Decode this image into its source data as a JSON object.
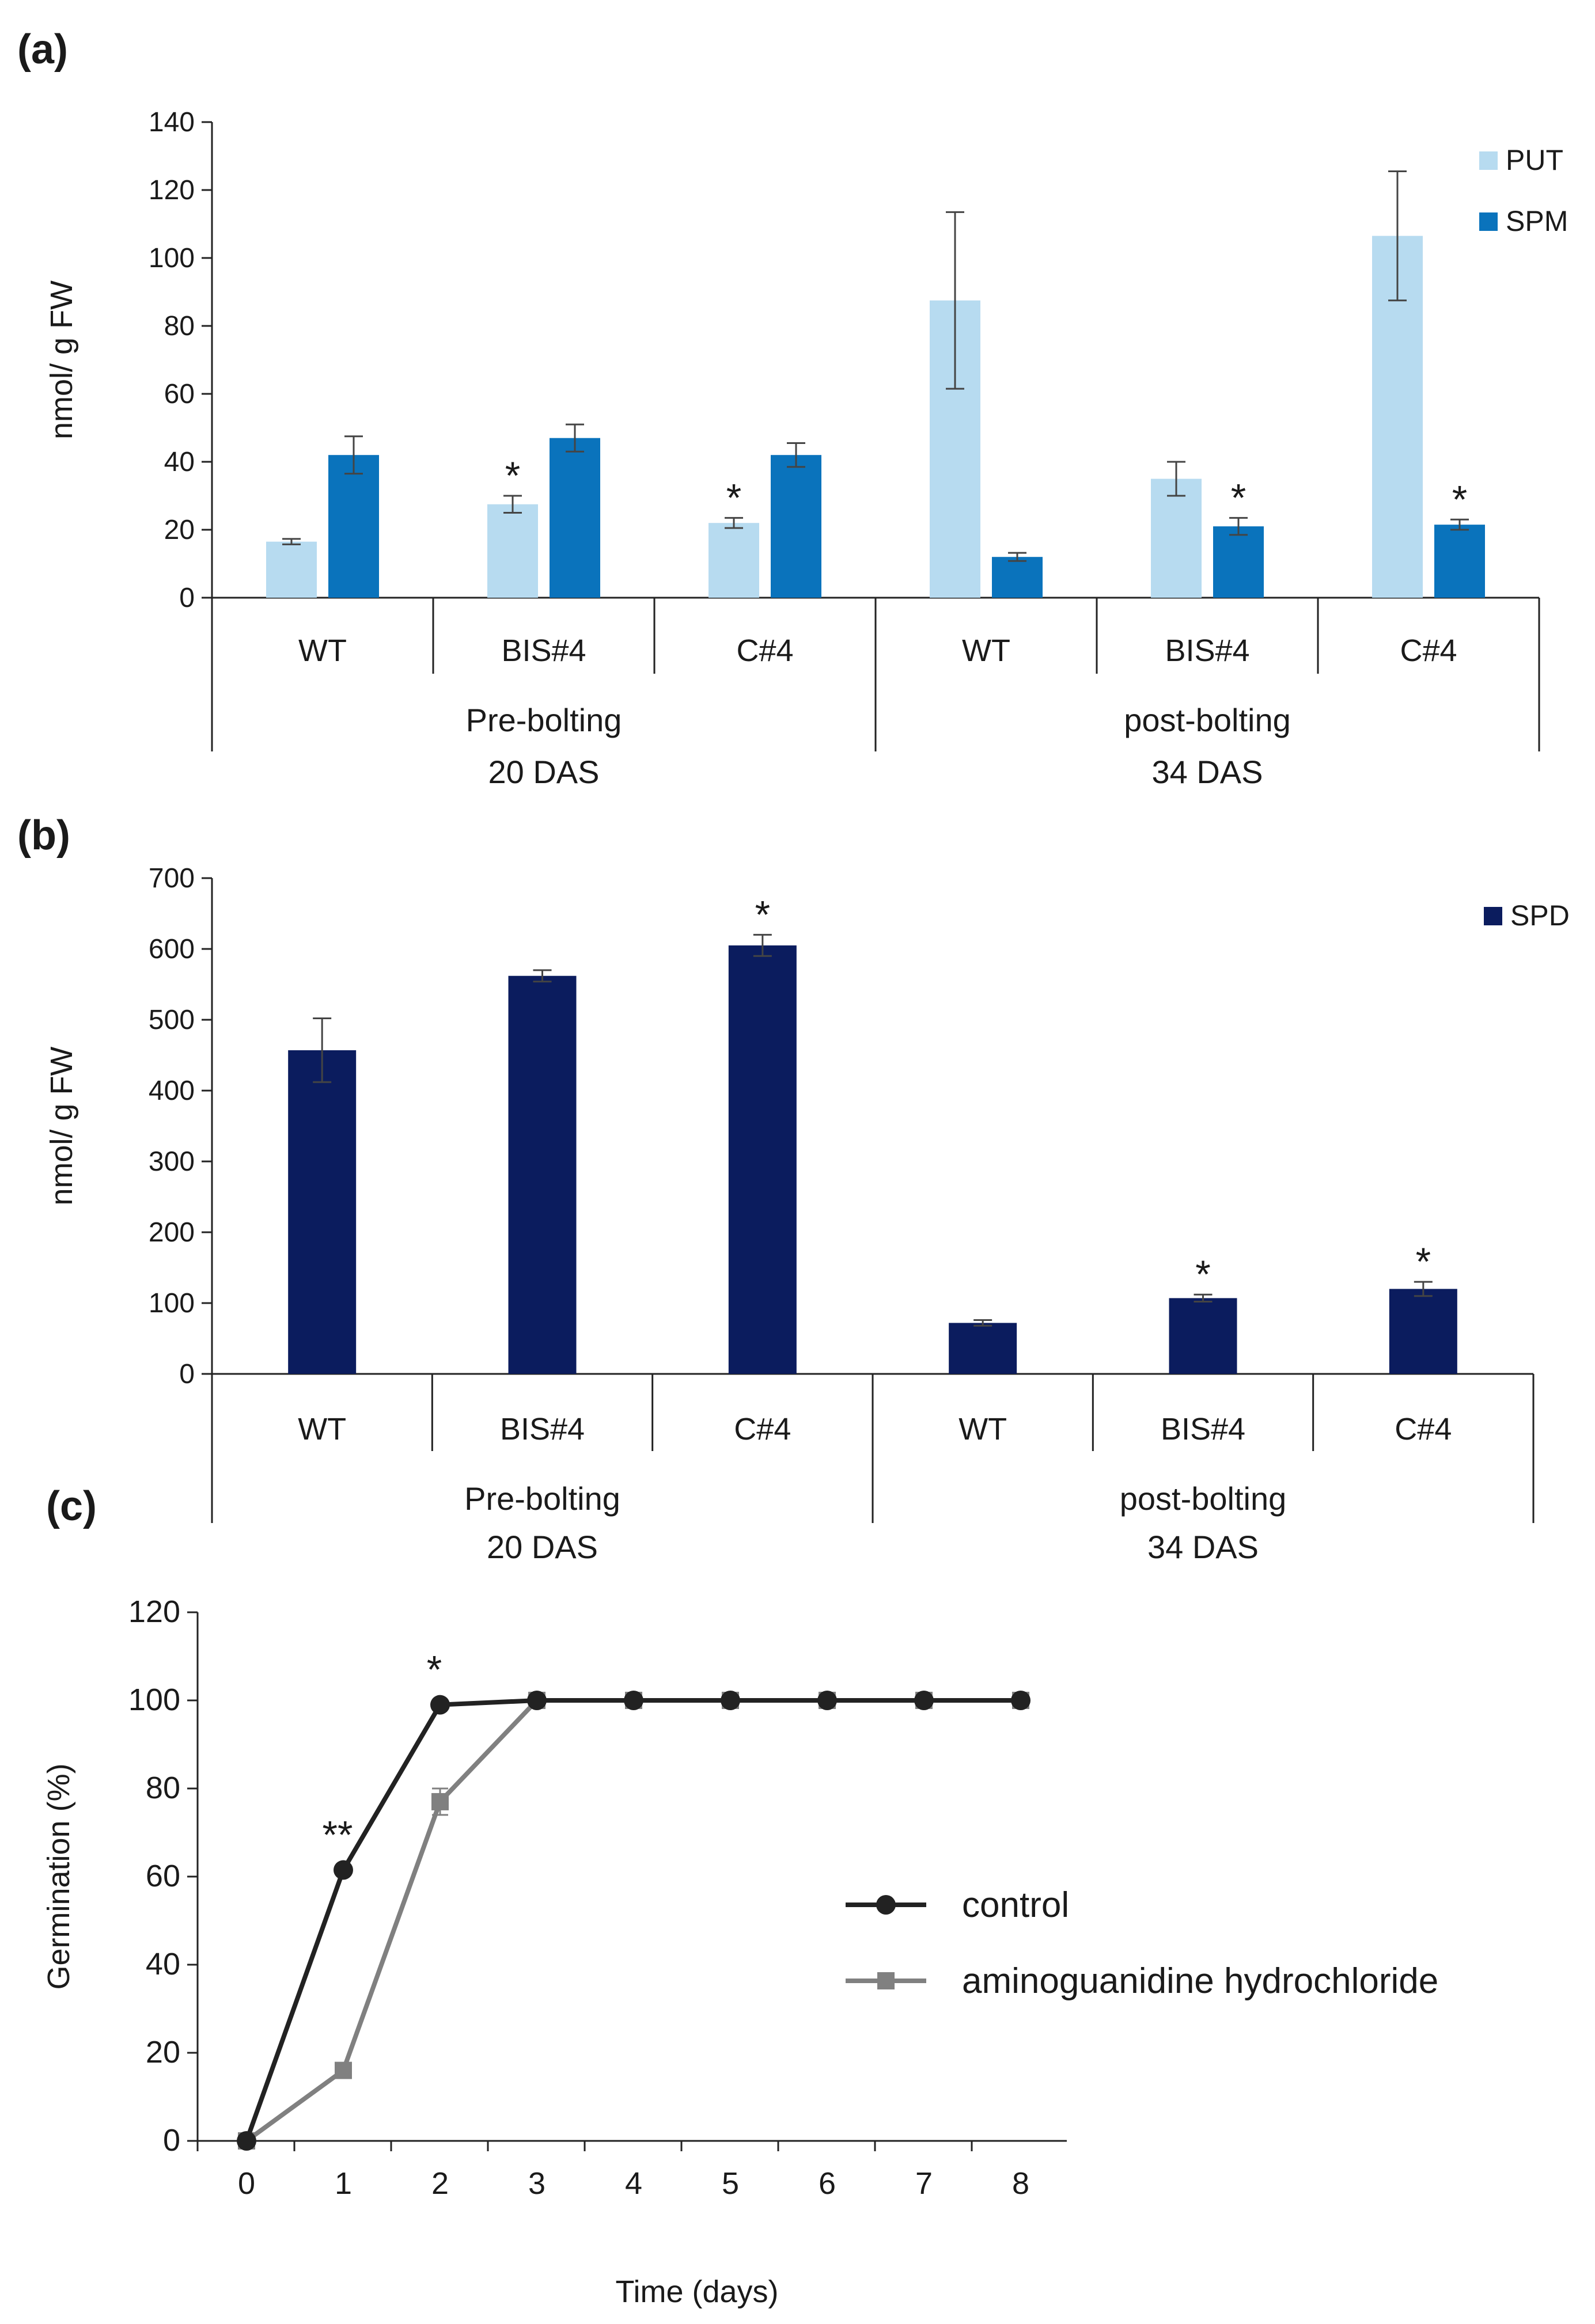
{
  "chart_data": [
    {
      "panel": "(a)",
      "type": "bar",
      "ylabel": "nmol/ g FW",
      "ylim": [
        0,
        140
      ],
      "yticks": [
        0,
        20,
        40,
        60,
        80,
        100,
        120,
        140
      ],
      "categories": [
        "WT",
        "BIS#4",
        "C#4",
        "WT",
        "BIS#4",
        "C#4"
      ],
      "groups": [
        {
          "label_line1": "Pre-bolting",
          "label_line2": "20 DAS"
        },
        {
          "label_line1": "post-bolting",
          "label_line2": "34 DAS"
        }
      ],
      "series": [
        {
          "name": "PUT",
          "color": "#b7dbf0",
          "values": [
            16.5,
            27.5,
            22,
            87.5,
            35,
            106.5
          ],
          "errors": [
            0.8,
            2.5,
            1.5,
            26,
            5,
            19
          ],
          "significant": [
            false,
            true,
            true,
            false,
            false,
            false
          ]
        },
        {
          "name": "SPM",
          "color": "#0a73bc",
          "values": [
            42,
            47,
            42,
            12,
            21,
            21.5
          ],
          "errors": [
            5.5,
            4,
            3.5,
            1.2,
            2.5,
            1.5
          ],
          "significant": [
            false,
            false,
            false,
            false,
            true,
            true
          ]
        }
      ],
      "significance_marker": "*",
      "legend_position": "top-right"
    },
    {
      "panel": "(b)",
      "type": "bar",
      "ylabel": "nmol/ g FW",
      "ylim": [
        0,
        700
      ],
      "yticks": [
        0,
        100,
        200,
        300,
        400,
        500,
        600,
        700
      ],
      "categories": [
        "WT",
        "BIS#4",
        "C#4",
        "WT",
        "BIS#4",
        "C#4"
      ],
      "groups": [
        {
          "label_line1": "Pre-bolting",
          "label_line2": "20 DAS"
        },
        {
          "label_line1": "post-bolting",
          "label_line2": "34 DAS"
        }
      ],
      "series": [
        {
          "name": "SPD",
          "color": "#0b1c5e",
          "values": [
            457,
            562,
            605,
            72,
            107,
            120
          ],
          "errors": [
            45,
            8,
            15,
            4,
            5,
            10
          ],
          "significant": [
            false,
            false,
            true,
            false,
            true,
            true
          ]
        }
      ],
      "significance_marker": "*",
      "legend_position": "top-right"
    },
    {
      "panel": "(c)",
      "type": "line",
      "xlabel": "Time (days)",
      "ylabel": "Germination (%)",
      "ylim": [
        0,
        120
      ],
      "yticks": [
        0,
        20,
        40,
        60,
        80,
        100,
        120
      ],
      "x": [
        0,
        1,
        2,
        3,
        4,
        5,
        6,
        7,
        8
      ],
      "series": [
        {
          "name": "control",
          "color": "#222222",
          "marker": "circle",
          "values": [
            0,
            61.5,
            99,
            100,
            100,
            100,
            100,
            100,
            100
          ],
          "errors": [
            0,
            1,
            0.5,
            0,
            0,
            0,
            0,
            0,
            0
          ]
        },
        {
          "name": "aminoguanidine hydrochloride",
          "color": "#808080",
          "marker": "square",
          "values": [
            0,
            16,
            77,
            100,
            100,
            100,
            100,
            100,
            100
          ],
          "errors": [
            0,
            1.5,
            3,
            0,
            0,
            0,
            0,
            0,
            0
          ]
        }
      ],
      "annotations": [
        {
          "x": 1,
          "text": "**",
          "series": "control"
        },
        {
          "x": 2,
          "text": "*",
          "series": "control"
        }
      ],
      "legend_position": "center-right"
    }
  ]
}
